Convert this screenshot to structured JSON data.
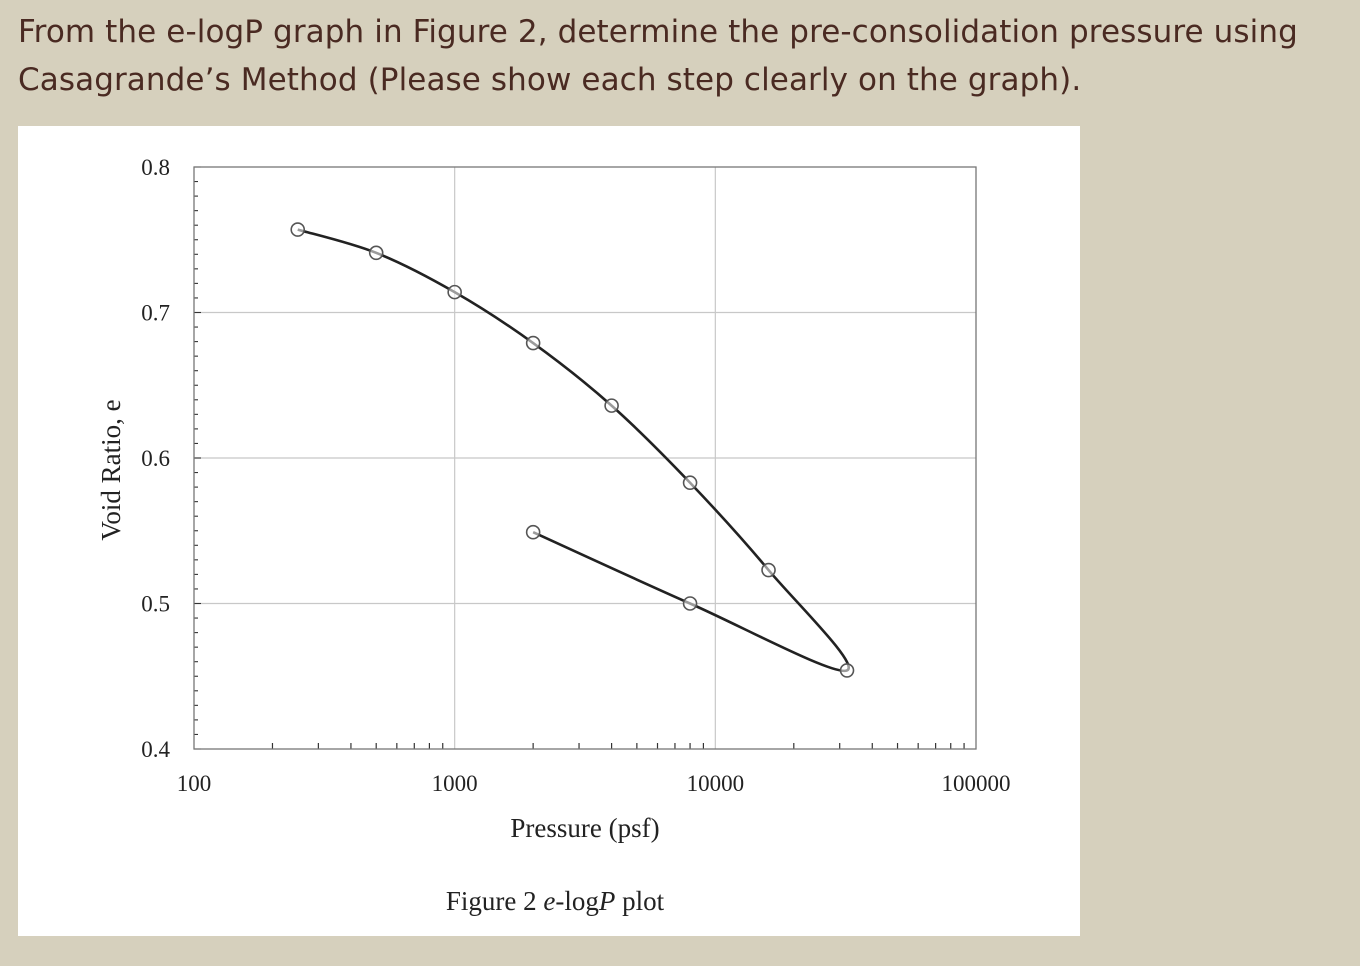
{
  "question": {
    "line1": "From the e-logP graph in Figure 2, determine the pre-consolidation pressure using",
    "line2": "Casagrande’s Method (Please show each step clearly on the graph)."
  },
  "chart_data": {
    "type": "line",
    "xscale": "log",
    "xlim": [
      100,
      100000
    ],
    "ylim": [
      0.4,
      0.8
    ],
    "xlabel": "Pressure (psf)",
    "ylabel": "Void Ratio, e",
    "caption_parts": [
      "Figure 2 ",
      "e",
      "-log",
      "P",
      " plot"
    ],
    "x_ticks": [
      "100",
      "1000",
      "10000",
      "100000"
    ],
    "y_ticks": [
      "0.4",
      "0.5",
      "0.6",
      "0.7",
      "0.8"
    ],
    "grid": true,
    "series": [
      {
        "points": [
          {
            "x": 250,
            "y": 0.757
          },
          {
            "x": 500,
            "y": 0.741
          },
          {
            "x": 1000,
            "y": 0.714
          },
          {
            "x": 2000,
            "y": 0.679
          },
          {
            "x": 4000,
            "y": 0.636
          },
          {
            "x": 8000,
            "y": 0.583
          },
          {
            "x": 16000,
            "y": 0.523
          },
          {
            "x": 32000,
            "y": 0.454
          },
          {
            "x": 8000,
            "y": 0.5
          },
          {
            "x": 2000,
            "y": 0.549
          }
        ]
      }
    ],
    "colors": {
      "line": "#222222",
      "marker": "#555555",
      "grid": "#c8c8c8"
    }
  }
}
